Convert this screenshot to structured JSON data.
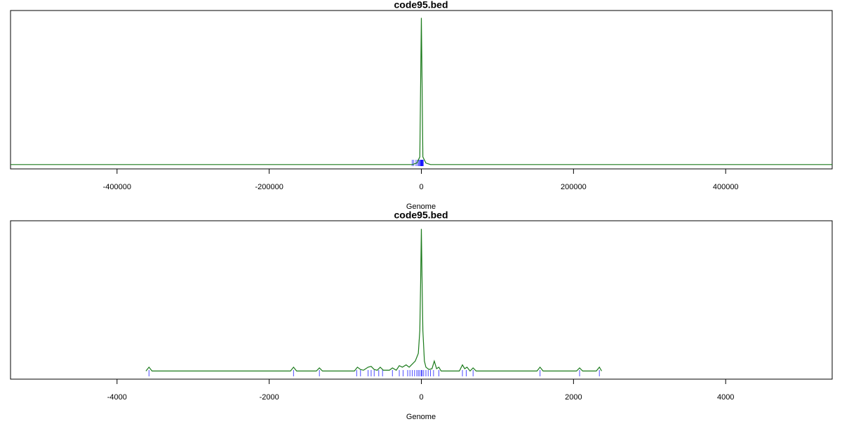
{
  "chart_data": [
    {
      "type": "line",
      "title": "code95.bed",
      "xlabel": "Genome",
      "xlim": [
        -540000,
        540000
      ],
      "xticks": [
        -400000,
        -200000,
        0,
        200000,
        400000
      ],
      "ylim": [
        0,
        1
      ],
      "color": "#1a7a1a",
      "x": [
        -540000,
        -12000,
        -6000,
        -2000,
        0,
        2000,
        6000,
        12000,
        540000
      ],
      "values": [
        0.01,
        0.01,
        0.02,
        0.06,
        0.97,
        0.06,
        0.02,
        0.01,
        0.01
      ],
      "rug": {
        "color": "#0000ff",
        "x": [
          -12000,
          -10000,
          -7000,
          -5000,
          -3500,
          -2500,
          -1500,
          -800,
          -400,
          0,
          300,
          700,
          1200,
          1600,
          2100,
          2500
        ]
      }
    },
    {
      "type": "line",
      "title": "code95.bed",
      "xlabel": "Genome",
      "xlim": [
        -5400,
        5400
      ],
      "xticks": [
        -4000,
        -2000,
        0,
        2000,
        4000
      ],
      "ylim": [
        0,
        1
      ],
      "color": "#1a7a1a",
      "x": [
        -3620,
        -3580,
        -3540,
        -1720,
        -1680,
        -1640,
        -1380,
        -1340,
        -1300,
        -880,
        -840,
        -800,
        -760,
        -700,
        -660,
        -620,
        -580,
        -540,
        -500,
        -420,
        -380,
        -330,
        -290,
        -250,
        -200,
        -160,
        -120,
        -80,
        -40,
        -20,
        -10,
        0,
        10,
        20,
        40,
        60,
        100,
        140,
        170,
        200,
        230,
        260,
        500,
        540,
        570,
        600,
        640,
        680,
        720,
        1520,
        1560,
        1600,
        2040,
        2080,
        2120,
        2300,
        2340,
        2370
      ],
      "values": [
        0.035,
        0.06,
        0.035,
        0.035,
        0.06,
        0.035,
        0.035,
        0.055,
        0.035,
        0.035,
        0.06,
        0.045,
        0.04,
        0.06,
        0.065,
        0.045,
        0.04,
        0.06,
        0.04,
        0.04,
        0.055,
        0.04,
        0.07,
        0.06,
        0.075,
        0.06,
        0.08,
        0.1,
        0.15,
        0.3,
        0.6,
        0.965,
        0.6,
        0.3,
        0.1,
        0.06,
        0.045,
        0.05,
        0.1,
        0.05,
        0.06,
        0.035,
        0.035,
        0.075,
        0.05,
        0.06,
        0.035,
        0.055,
        0.035,
        0.035,
        0.06,
        0.035,
        0.035,
        0.055,
        0.035,
        0.035,
        0.06,
        0.035
      ],
      "rug": {
        "color": "#0000ff",
        "x": [
          -3580,
          -1680,
          -1340,
          -850,
          -800,
          -700,
          -660,
          -620,
          -560,
          -510,
          -380,
          -290,
          -240,
          -180,
          -150,
          -120,
          -90,
          -60,
          -40,
          -20,
          0,
          10,
          30,
          60,
          90,
          120,
          160,
          230,
          540,
          590,
          680,
          1560,
          2080,
          2340
        ]
      }
    }
  ]
}
